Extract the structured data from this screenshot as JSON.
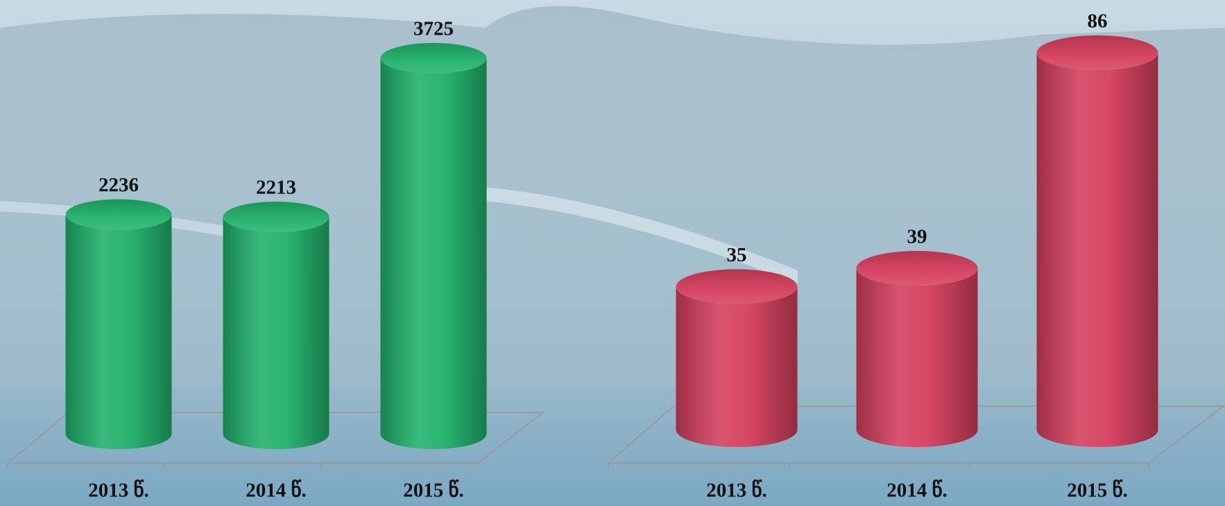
{
  "chart_data": [
    {
      "type": "cylinder",
      "categories": [
        "2013 წ.",
        "2014 წ.",
        "2015 წ."
      ],
      "values": [
        2236,
        2213,
        3725
      ],
      "color": "#1fb06a"
    },
    {
      "type": "cylinder",
      "categories": [
        "2013 წ.",
        "2014 წ.",
        "2015 წ."
      ],
      "values": [
        35,
        39,
        86
      ],
      "color": "#d43d5c"
    }
  ]
}
